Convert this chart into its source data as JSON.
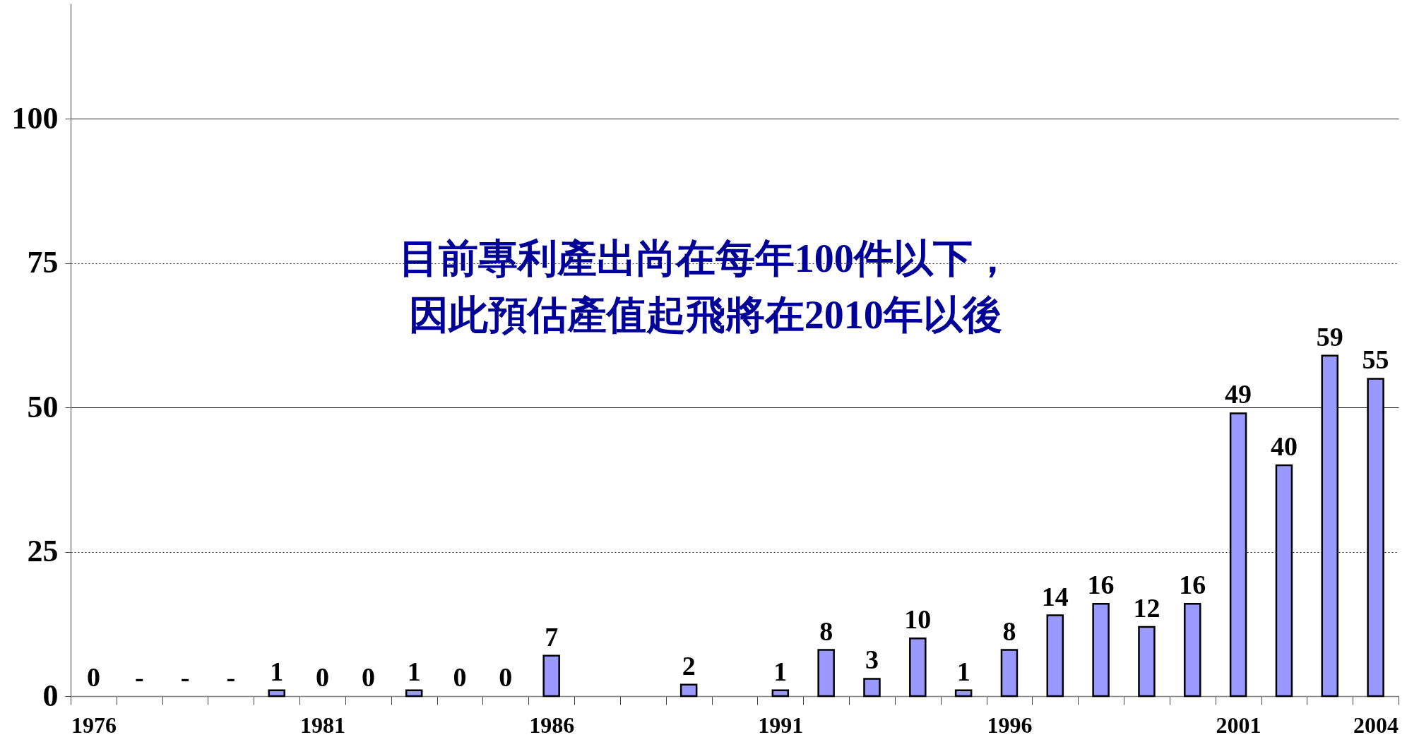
{
  "chart_data": {
    "type": "bar",
    "categories": [
      "1976",
      null,
      null,
      null,
      null,
      "1981",
      null,
      null,
      null,
      null,
      "1986",
      null,
      null,
      null,
      null,
      "1991",
      null,
      null,
      null,
      null,
      "1996",
      null,
      null,
      null,
      null,
      "2001",
      null,
      null,
      "2004"
    ],
    "values": [
      0,
      null,
      null,
      null,
      1,
      0,
      0,
      1,
      0,
      0,
      7,
      null,
      null,
      2,
      null,
      1,
      8,
      3,
      10,
      1,
      8,
      14,
      16,
      12,
      16,
      49,
      40,
      59,
      55
    ],
    "value_labels": [
      "0",
      "-",
      "-",
      "-",
      "1",
      "0",
      "0",
      "1",
      "0",
      "0",
      "7",
      null,
      null,
      "2",
      null,
      "1",
      "8",
      "3",
      "10",
      "1",
      "8",
      "14",
      "16",
      "12",
      "16",
      "49",
      "40",
      "59",
      "55"
    ],
    "color": "#9999ff",
    "ylim": [
      0,
      120
    ],
    "yticks": [
      0,
      25,
      50,
      75,
      100
    ],
    "grid": "y",
    "annotations": [
      "目前專利產出尚在每年100件以下，因此預估產值起飛將在2010年以後"
    ]
  }
}
